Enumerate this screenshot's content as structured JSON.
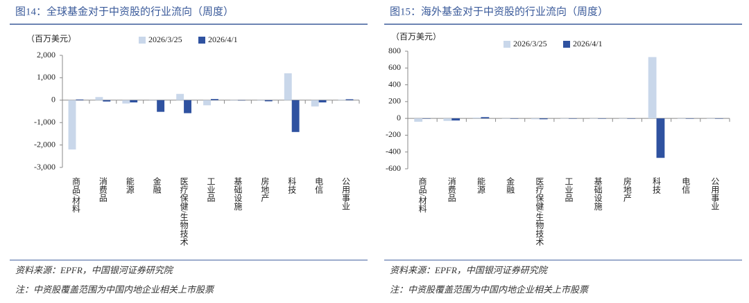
{
  "chart_data": [
    {
      "type": "bar",
      "title": "图14：全球基金对于中资股的行业流向（周度）",
      "y_label": "（百万美元）",
      "categories": [
        "商品/材料",
        "消费品",
        "能源",
        "金融",
        "医疗保健/生物技术",
        "工业品",
        "基础设施",
        "房地产",
        "科技",
        "电信",
        "公用事业"
      ],
      "series": [
        {
          "name": "2026/3/25",
          "color": "#c9d7ea",
          "values": [
            -2200,
            140,
            -150,
            0,
            280,
            -230,
            -20,
            -20,
            1200,
            -280,
            20
          ]
        },
        {
          "name": "2026/4/1",
          "color": "#2f52a0",
          "values": [
            30,
            -60,
            -100,
            -520,
            -580,
            50,
            -10,
            -50,
            -1420,
            -100,
            40
          ]
        }
      ],
      "ylim": [
        -3000,
        2000
      ],
      "yticks": [
        {
          "value": -3000,
          "label": "-3,000"
        },
        {
          "value": -2000,
          "label": "-2,000"
        },
        {
          "value": -1000,
          "label": "-1,000"
        },
        0,
        {
          "value": 1000,
          "label": "1,000"
        },
        {
          "value": 2000,
          "label": "2,000"
        }
      ],
      "source": "资料来源：EPFR，中国银河证券研究院",
      "note": "注：中资股覆盖范围为中国内地企业相关上市股票"
    },
    {
      "type": "bar",
      "title": "图15：海外基金对于中资股的行业流向（周度）",
      "y_label": "（百万美元）",
      "categories": [
        "商品/材料",
        "消费品",
        "能源",
        "金融",
        "医疗保健/生物技术",
        "工业品",
        "基础设施",
        "房地产",
        "科技",
        "电信",
        "公用事业"
      ],
      "series": [
        {
          "name": "2026/3/25",
          "color": "#c9d7ea",
          "values": [
            -40,
            -30,
            10,
            0,
            -10,
            0,
            0,
            0,
            730,
            0,
            0
          ]
        },
        {
          "name": "2026/4/1",
          "color": "#2f52a0",
          "values": [
            0,
            -25,
            15,
            0,
            -10,
            0,
            0,
            0,
            -470,
            0,
            0
          ]
        }
      ],
      "ylim": [
        -600,
        800
      ],
      "yticks": [
        -600,
        -400,
        -200,
        0,
        200,
        400,
        600,
        800
      ],
      "source": "资料来源：EPFR，中国银河证券研究院",
      "note": "注：中资股覆盖范围为中国内地企业相关上市股票"
    }
  ]
}
